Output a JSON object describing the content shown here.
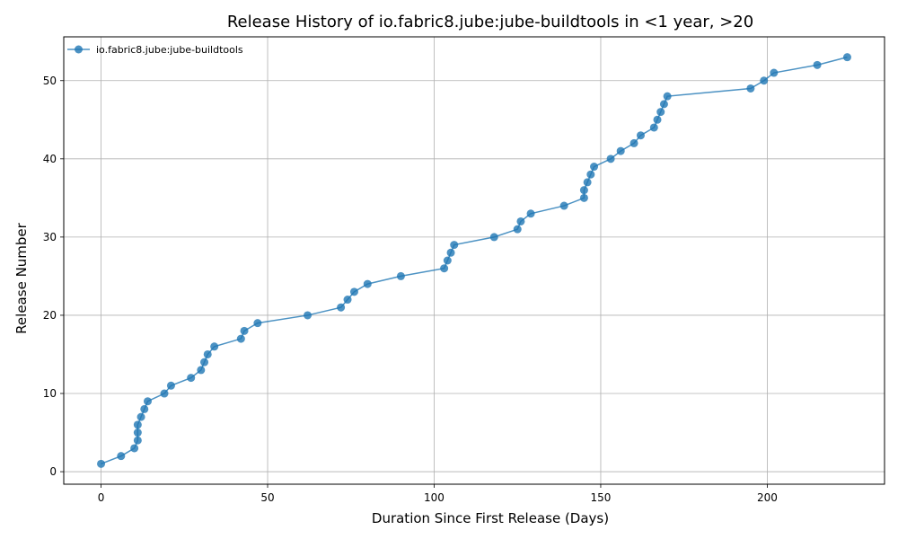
{
  "chart_data": {
    "type": "line",
    "title": "Release History of io.fabric8.jube:jube-buildtools in <1 year, >20",
    "xlabel": "Duration Since First Release (Days)",
    "ylabel": "Release Number",
    "xlim": [
      -11.2,
      235.2
    ],
    "ylim": [
      -1.6,
      55.6
    ],
    "xticks": [
      0,
      50,
      100,
      150,
      200
    ],
    "yticks": [
      0,
      10,
      20,
      30,
      40,
      50
    ],
    "grid": true,
    "legend_position": "top-left",
    "series": [
      {
        "name": "io.fabric8.jube:jube-buildtools",
        "color": "#1f77b4",
        "marker": "circle",
        "x": [
          0,
          6,
          10,
          11,
          11,
          11,
          12,
          13,
          14,
          19,
          21,
          27,
          30,
          31,
          32,
          34,
          42,
          43,
          47,
          62,
          72,
          74,
          76,
          80,
          90,
          103,
          104,
          105,
          106,
          118,
          125,
          126,
          129,
          139,
          145,
          145,
          146,
          147,
          148,
          153,
          156,
          160,
          162,
          166,
          167,
          168,
          169,
          170,
          195,
          199,
          202,
          215,
          224
        ],
        "y": [
          1,
          2,
          3,
          4,
          5,
          6,
          7,
          8,
          9,
          10,
          11,
          12,
          13,
          14,
          15,
          16,
          17,
          18,
          19,
          20,
          21,
          22,
          23,
          24,
          25,
          26,
          27,
          28,
          29,
          30,
          31,
          32,
          33,
          34,
          35,
          36,
          37,
          38,
          39,
          40,
          41,
          42,
          43,
          44,
          45,
          46,
          47,
          48,
          49,
          50,
          51,
          52,
          53
        ]
      }
    ]
  }
}
